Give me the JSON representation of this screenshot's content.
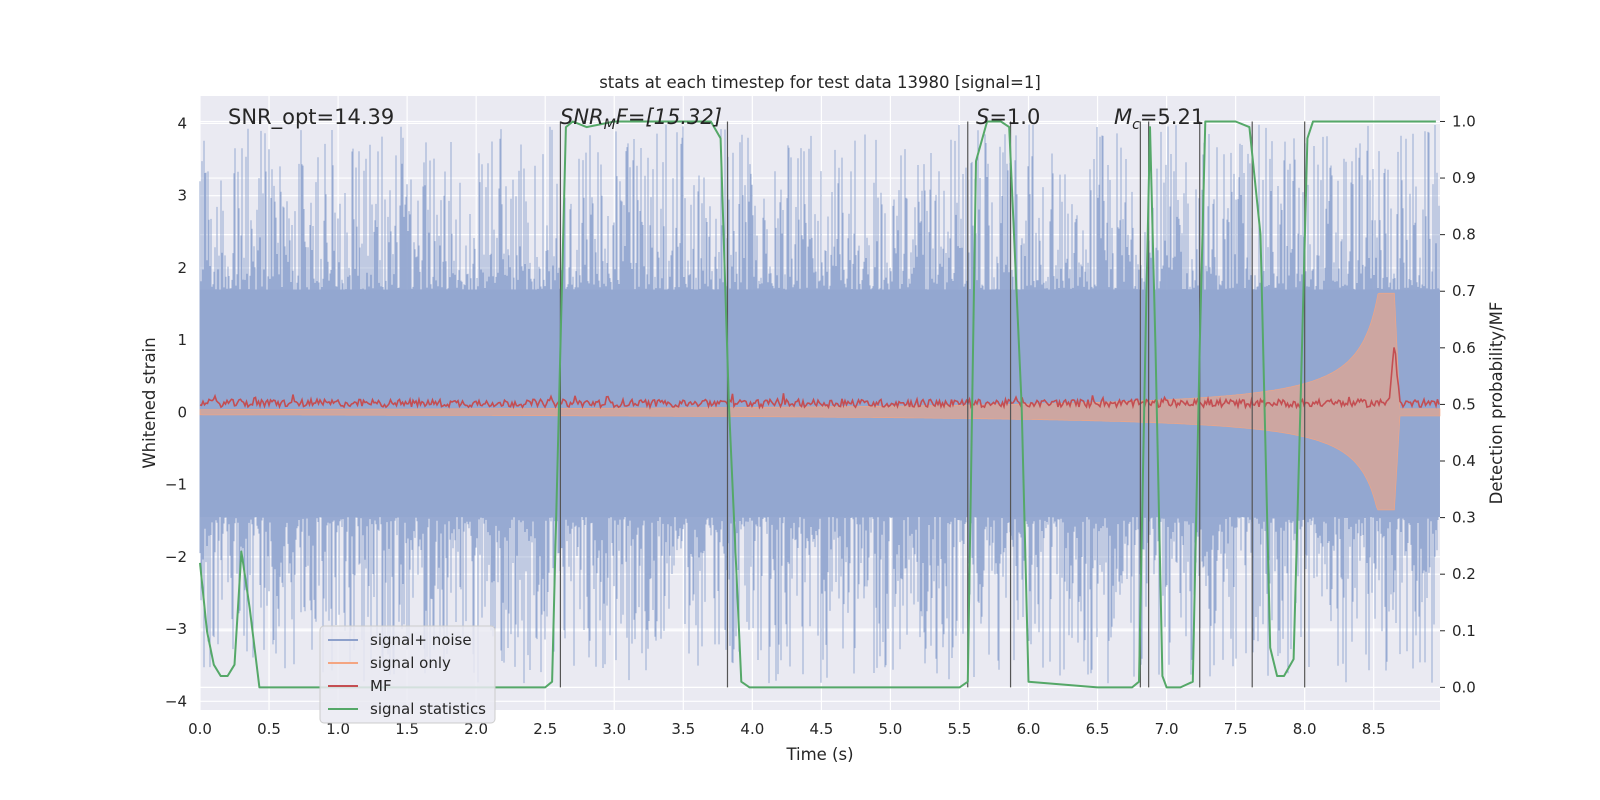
{
  "chart_data": {
    "type": "line",
    "title": "stats at each timestep for test data 13980 [signal=1]",
    "xlabel": "Time (s)",
    "ylabel_left": "Whitened strain",
    "ylabel_right": "Detection probability/MF",
    "xlim": [
      0.0,
      8.98
    ],
    "ylim_left": [
      -4.12,
      4.38
    ],
    "ylim_right": [
      -0.04,
      1.045
    ],
    "xticks": [
      0.0,
      0.5,
      1.0,
      1.5,
      2.0,
      2.5,
      3.0,
      3.5,
      4.0,
      4.5,
      5.0,
      5.5,
      6.0,
      6.5,
      7.0,
      7.5,
      8.0,
      8.5
    ],
    "xtick_labels": [
      "0.0",
      "0.5",
      "1.0",
      "1.5",
      "2.0",
      "2.5",
      "3.0",
      "3.5",
      "4.0",
      "4.5",
      "5.0",
      "5.5",
      "6.0",
      "6.5",
      "7.0",
      "7.5",
      "8.0",
      "8.5"
    ],
    "yticks_left": [
      -4,
      -3,
      -2,
      -1,
      0,
      1,
      2,
      3,
      4
    ],
    "ytick_labels_left": [
      "−4",
      "−3",
      "−2",
      "−1",
      "0",
      "1",
      "2",
      "3",
      "4"
    ],
    "yticks_right": [
      0.0,
      0.1,
      0.2,
      0.3,
      0.4,
      0.5,
      0.6,
      0.7,
      0.8,
      0.9,
      1.0
    ],
    "ytick_labels_right": [
      "0.0",
      "0.1",
      "0.2",
      "0.3",
      "0.4",
      "0.5",
      "0.6",
      "0.7",
      "0.8",
      "0.9",
      "1.0"
    ],
    "annotations": {
      "snr_opt": "SNR_opt=14.39",
      "snr_mf_main": "SNR",
      "snr_mf_sub": "M",
      "snr_mf_rest": "F=[15.32]",
      "s_main": "S",
      "s_rest": "=1.0",
      "mc_main": "M",
      "mc_sub": "c",
      "mc_rest": "=5.21"
    },
    "legend": {
      "position": "lower-left",
      "entries": [
        {
          "label": "signal+ noise",
          "color": "#8da0cb"
        },
        {
          "label": "signal only",
          "color": "#f4a582"
        },
        {
          "label": "MF",
          "color": "#c44e52"
        },
        {
          "label": "signal statistics",
          "color": "#55a868"
        }
      ]
    },
    "series": [
      {
        "name": "signal+ noise",
        "axis": "left",
        "style": "noise band",
        "color": "#92a6d0",
        "core_band": [
          -1.45,
          1.7
        ],
        "spike_range": [
          -3.75,
          4.0
        ]
      },
      {
        "name": "signal only",
        "axis": "left",
        "style": "chirp envelope",
        "color": "#f4a582",
        "start_amplitude": 0.04,
        "peak_time": 8.65,
        "peak_amplitude_upper": 1.65,
        "peak_amplitude_lower": -1.35
      },
      {
        "name": "MF",
        "axis": "right",
        "color": "#c44e52",
        "baseline": 0.5,
        "peak_time": 8.65,
        "peak_value": 0.6
      },
      {
        "name": "signal statistics",
        "axis": "right",
        "color": "#55a868",
        "x": [
          0.0,
          0.05,
          0.1,
          0.15,
          0.2,
          0.25,
          0.3,
          0.36,
          0.43,
          0.5,
          1.0,
          1.5,
          2.0,
          2.5,
          2.55,
          2.6,
          2.65,
          2.7,
          2.8,
          3.0,
          3.5,
          3.7,
          3.77,
          3.83,
          3.92,
          3.98,
          4.5,
          5.0,
          5.5,
          5.56,
          5.62,
          5.7,
          5.8,
          5.86,
          5.95,
          6.0,
          6.5,
          6.75,
          6.8,
          6.85,
          6.88,
          6.92,
          6.97,
          7.0,
          7.1,
          7.19,
          7.24,
          7.28,
          7.5,
          7.6,
          7.68,
          7.75,
          7.8,
          7.85,
          7.92,
          7.97,
          8.02,
          8.06,
          8.12,
          8.5,
          8.95
        ],
        "y": [
          0.22,
          0.1,
          0.04,
          0.02,
          0.02,
          0.04,
          0.24,
          0.14,
          0.0,
          0.0,
          0.0,
          0.0,
          0.0,
          0.0,
          0.01,
          0.5,
          0.99,
          1.0,
          0.99,
          1.0,
          1.0,
          1.0,
          0.97,
          0.5,
          0.01,
          0.0,
          0.0,
          0.0,
          0.0,
          0.01,
          0.93,
          1.0,
          1.0,
          0.99,
          0.5,
          0.01,
          0.0,
          0.0,
          0.01,
          0.65,
          0.99,
          0.6,
          0.02,
          0.0,
          0.0,
          0.01,
          0.6,
          1.0,
          1.0,
          0.99,
          0.8,
          0.07,
          0.02,
          0.02,
          0.05,
          0.5,
          0.97,
          1.0,
          1.0,
          1.0,
          1.0
        ]
      }
    ],
    "detection_boundaries": [
      2.61,
      3.82,
      5.56,
      5.87,
      6.81,
      6.87,
      7.24,
      7.62,
      8.0
    ]
  }
}
